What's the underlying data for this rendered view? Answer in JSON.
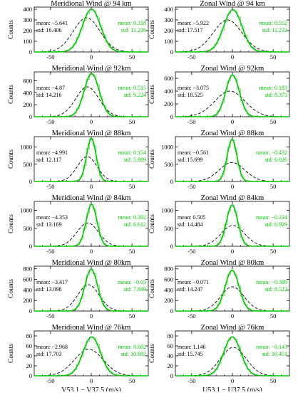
{
  "figure": {
    "ylabel": "Counts",
    "xlabel_left": "V53.1 − V37.5 (m/s)",
    "xlabel_right": "U53.1 − U37.5 (m/s)"
  },
  "chart_data": [
    {
      "type": "line",
      "title": "Meridional Wind @ 94 km",
      "ylabel": "Counts",
      "xlim": [
        -70,
        70
      ],
      "ylim": [
        0,
        420
      ],
      "xticks": [
        -50,
        0,
        50
      ],
      "yticks": [
        0,
        100,
        200,
        300,
        400
      ],
      "ytick_labels": [
        "0",
        "100",
        "200",
        "300",
        "400"
      ],
      "series": [
        {
          "name": "",
          "color": "#000000",
          "style": "dashed",
          "stats": {
            "mean": -5.641,
            "std": 16.406
          },
          "stats_text": [
            "mean: −5.641",
            "std: 16.406"
          ],
          "peak": 320,
          "center": -5.641,
          "sigma": 16.406
        },
        {
          "name": "",
          "color": "#00c800",
          "style": "solid",
          "stats": {
            "mean": 0.318,
            "std": 11.236
          },
          "stats_text": [
            "mean: 0.318",
            "std: 11.236"
          ],
          "peak": 400,
          "center": 0.318,
          "sigma": 11.236
        }
      ]
    },
    {
      "type": "line",
      "title": "Zonal Wind @ 94 km",
      "ylabel": "Counts",
      "xlim": [
        -70,
        70
      ],
      "ylim": [
        0,
        420
      ],
      "xticks": [
        -50,
        0,
        50
      ],
      "yticks": [
        0,
        100,
        200,
        300,
        400
      ],
      "ytick_labels": [
        "0",
        "100",
        "200",
        "300",
        "400"
      ],
      "series": [
        {
          "name": "",
          "color": "#000000",
          "style": "dashed",
          "stats": {
            "mean": -5.922,
            "std": 17.517
          },
          "stats_text": [
            "mean: −5.922",
            "std: 17.517"
          ],
          "peak": 300,
          "center": -5.922,
          "sigma": 17.517
        },
        {
          "name": "",
          "color": "#00c800",
          "style": "solid",
          "stats": {
            "mean": 0.552,
            "std": 11.232
          },
          "stats_text": [
            "mean: 0.552",
            "std: 11.232"
          ],
          "peak": 395,
          "center": 0.552,
          "sigma": 11.232
        }
      ]
    },
    {
      "type": "line",
      "title": "Meridional Wind @ 92km",
      "ylabel": "Counts",
      "xlim": [
        -70,
        70
      ],
      "ylim": [
        0,
        750
      ],
      "xticks": [
        -50,
        0,
        50
      ],
      "yticks": [
        0,
        200,
        400,
        600
      ],
      "ytick_labels": [
        "0",
        "200",
        "400",
        "600"
      ],
      "series": [
        {
          "name": "",
          "color": "#000000",
          "style": "dashed",
          "stats": {
            "mean": -4.87,
            "std": 14.216
          },
          "stats_text": [
            "mean: −4.87",
            "std: 14.216"
          ],
          "peak": 500,
          "center": -4.87,
          "sigma": 14.216
        },
        {
          "name": "",
          "color": "#00c800",
          "style": "solid",
          "stats": {
            "mean": 0.515,
            "std": 9.224
          },
          "stats_text": [
            "mean: 0.515",
            "std: 9.224"
          ],
          "peak": 720,
          "center": 0.515,
          "sigma": 9.224
        }
      ]
    },
    {
      "type": "line",
      "title": "Zonal Wind @ 92km",
      "ylabel": "Counts",
      "xlim": [
        -70,
        70
      ],
      "ylim": [
        0,
        700
      ],
      "xticks": [
        -50,
        0,
        50
      ],
      "yticks": [
        0,
        200,
        400,
        600
      ],
      "ytick_labels": [
        "0",
        "200",
        "400",
        "600"
      ],
      "series": [
        {
          "name": "",
          "color": "#000000",
          "style": "dashed",
          "stats": {
            "mean": -3.075,
            "std": 18.525
          },
          "stats_text": [
            "mean: −3.075",
            "std: 18.525"
          ],
          "peak": 400,
          "center": -3.075,
          "sigma": 18.525
        },
        {
          "name": "",
          "color": "#00c800",
          "style": "solid",
          "stats": {
            "mean": 0.183,
            "std": 8.373
          },
          "stats_text": [
            "mean: 0.183",
            "std: 8.373"
          ],
          "peak": 650,
          "center": 0.183,
          "sigma": 8.373
        }
      ]
    },
    {
      "type": "line",
      "title": "Meridional Wind @ 88km",
      "ylabel": "Counts",
      "xlim": [
        -70,
        70
      ],
      "ylim": [
        0,
        1300
      ],
      "xticks": [
        -50,
        0,
        50
      ],
      "yticks": [
        0,
        500,
        1000
      ],
      "ytick_labels": [
        "0",
        "500",
        "1000"
      ],
      "series": [
        {
          "name": "",
          "color": "#000000",
          "style": "dashed",
          "stats": {
            "mean": -4.991,
            "std": 12.117
          },
          "stats_text": [
            "mean: −4.991",
            "std: 12.117"
          ],
          "peak": 720,
          "center": -4.991,
          "sigma": 12.117
        },
        {
          "name": "",
          "color": "#00c800",
          "style": "solid",
          "stats": {
            "mean": 0.154,
            "std": 5.889
          },
          "stats_text": [
            "mean: 0.154",
            "std: 5.889"
          ],
          "peak": 1250,
          "center": 0.154,
          "sigma": 5.889
        }
      ]
    },
    {
      "type": "line",
      "title": "Zonal Wind @ 88km",
      "ylabel": "Counts",
      "xlim": [
        -70,
        70
      ],
      "ylim": [
        0,
        1300
      ],
      "xticks": [
        -50,
        0,
        50
      ],
      "yticks": [
        0,
        500,
        1000
      ],
      "ytick_labels": [
        "0",
        "500",
        "1000"
      ],
      "series": [
        {
          "name": "",
          "color": "#000000",
          "style": "dashed",
          "stats": {
            "mean": -0.561,
            "std": 15.699
          },
          "stats_text": [
            "mean: −0.561",
            "std: 15.699"
          ],
          "peak": 550,
          "center": -0.561,
          "sigma": 15.699
        },
        {
          "name": "",
          "color": "#00c800",
          "style": "solid",
          "stats": {
            "mean": -0.432,
            "std": 6.026
          },
          "stats_text": [
            "mean: −0.432",
            "std: 6.026"
          ],
          "peak": 1220,
          "center": -0.432,
          "sigma": 6.026
        }
      ]
    },
    {
      "type": "line",
      "title": "Meridional Wind @ 84km",
      "ylabel": "Counts",
      "xlim": [
        -70,
        70
      ],
      "ylim": [
        0,
        1250
      ],
      "xticks": [
        -50,
        0,
        50
      ],
      "yticks": [
        0,
        500,
        1000
      ],
      "ytick_labels": [
        "0",
        "500",
        "1000"
      ],
      "series": [
        {
          "name": "",
          "color": "#000000",
          "style": "dashed",
          "stats": {
            "mean": -4.353,
            "std": 13.169
          },
          "stats_text": [
            "mean: −4.353",
            "std: 13.169"
          ],
          "peak": 650,
          "center": -4.353,
          "sigma": 13.169
        },
        {
          "name": "",
          "color": "#00c800",
          "style": "solid",
          "stats": {
            "mean": 0.392,
            "std": 6.612
          },
          "stats_text": [
            "mean: 0.392",
            "std: 6.612"
          ],
          "peak": 1170,
          "center": 0.392,
          "sigma": 6.612
        }
      ]
    },
    {
      "type": "line",
      "title": "Zonal Wind @ 84km",
      "ylabel": "Counts",
      "xlim": [
        -70,
        70
      ],
      "ylim": [
        0,
        1250
      ],
      "xticks": [
        -50,
        0,
        50
      ],
      "yticks": [
        0,
        500,
        1000
      ],
      "ytick_labels": [
        "0",
        "500",
        "1000"
      ],
      "series": [
        {
          "name": "",
          "color": "#000000",
          "style": "dashed",
          "stats": {
            "mean": 0.505,
            "std": 14.484
          },
          "stats_text": [
            "mean: 0.505",
            "std: 14.484"
          ],
          "peak": 580,
          "center": 0.505,
          "sigma": 14.484
        },
        {
          "name": "",
          "color": "#00c800",
          "style": "solid",
          "stats": {
            "mean": -0.334,
            "std": 6.929
          },
          "stats_text": [
            "mean: −0.334",
            "std: 6.929"
          ],
          "peak": 1150,
          "center": -0.334,
          "sigma": 6.929
        }
      ]
    },
    {
      "type": "line",
      "title": "Meridional Wind @ 80km",
      "ylabel": "Counts",
      "xlim": [
        -70,
        70
      ],
      "ylim": [
        0,
        850
      ],
      "xticks": [
        -50,
        0,
        50
      ],
      "yticks": [
        0,
        200,
        400,
        600,
        800
      ],
      "ytick_labels": [
        "0",
        "200",
        "400",
        "600",
        "800"
      ],
      "series": [
        {
          "name": "",
          "color": "#000000",
          "style": "dashed",
          "stats": {
            "mean": -3.417,
            "std": 13.098
          },
          "stats_text": [
            "mean: −3.417",
            "std: 13.098"
          ],
          "peak": 500,
          "center": -3.417,
          "sigma": 13.098
        },
        {
          "name": "",
          "color": "#00c800",
          "style": "solid",
          "stats": {
            "mean": -0.03,
            "std": 7.849
          },
          "stats_text": [
            "mean: −0.03",
            "std: 7.849"
          ],
          "peak": 790,
          "center": -0.03,
          "sigma": 7.849
        }
      ]
    },
    {
      "type": "line",
      "title": "Zonal Wind @ 80km",
      "ylabel": "Counts",
      "xlim": [
        -70,
        70
      ],
      "ylim": [
        0,
        850
      ],
      "xticks": [
        -50,
        0,
        50
      ],
      "yticks": [
        0,
        200,
        400,
        600,
        800
      ],
      "ytick_labels": [
        "0",
        "200",
        "400",
        "600",
        "800"
      ],
      "series": [
        {
          "name": "",
          "color": "#000000",
          "style": "dashed",
          "stats": {
            "mean": -0.071,
            "std": 14.247
          },
          "stats_text": [
            "mean: −0.071",
            "std: 14.247"
          ],
          "peak": 460,
          "center": -0.071,
          "sigma": 14.247
        },
        {
          "name": "",
          "color": "#00c800",
          "style": "solid",
          "stats": {
            "mean": -0.389,
            "std": 8.522
          },
          "stats_text": [
            "mean: −0.389",
            "std: 8.522"
          ],
          "peak": 770,
          "center": -0.389,
          "sigma": 8.522
        }
      ]
    },
    {
      "type": "line",
      "title": "Meridional Wind @ 76km",
      "ylabel": "Counts",
      "xlim": [
        -70,
        70
      ],
      "ylim": [
        0,
        90
      ],
      "xticks": [
        -50,
        0,
        50
      ],
      "yticks": [
        0,
        20,
        40,
        60,
        80
      ],
      "ytick_labels": [
        "0",
        "20",
        "40",
        "60",
        "80"
      ],
      "series": [
        {
          "name": "",
          "color": "#000000",
          "style": "dashed",
          "stats": {
            "mean": -2.968,
            "std": 17.703
          },
          "stats_text": [
            "mean: −2.968",
            "std: 17.703"
          ],
          "peak": 53,
          "center": -2.968,
          "sigma": 17.703
        },
        {
          "name": "",
          "color": "#00c800",
          "style": "solid",
          "stats": {
            "mean": 0.602,
            "std": 10.692
          },
          "stats_text": [
            "mean: 0.602",
            "std: 10.692"
          ],
          "peak": 78,
          "center": 0.602,
          "sigma": 10.692
        }
      ]
    },
    {
      "type": "line",
      "title": "Zonal Wind @ 76km",
      "ylabel": "Counts",
      "xlim": [
        -70,
        70
      ],
      "ylim": [
        0,
        90
      ],
      "xticks": [
        -50,
        0,
        50
      ],
      "yticks": [
        0,
        20,
        40,
        60,
        80
      ],
      "ytick_labels": [
        "0",
        "20",
        "40",
        "60",
        "80"
      ],
      "series": [
        {
          "name": "",
          "color": "#000000",
          "style": "dashed",
          "stats": {
            "mean": 1.146,
            "std": 15.745
          },
          "stats_text": [
            "mean: 1.146",
            "std: 15.745"
          ],
          "peak": 57,
          "center": 1.146,
          "sigma": 15.745
        },
        {
          "name": "",
          "color": "#00c800",
          "style": "solid",
          "stats": {
            "mean": -0.143,
            "std": 10.451
          },
          "stats_text": [
            "mean: −0.143",
            "std: 10.451"
          ],
          "peak": 78,
          "center": -0.143,
          "sigma": 10.451
        }
      ]
    }
  ]
}
